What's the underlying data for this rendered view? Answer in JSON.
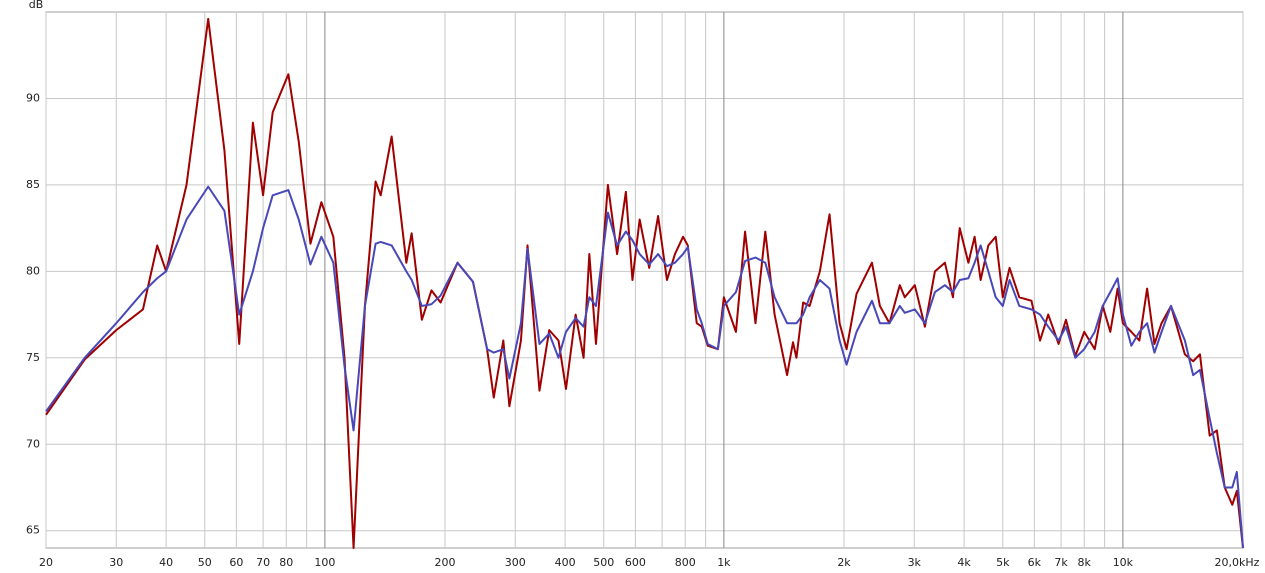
{
  "chart_data": {
    "type": "line",
    "y_label": "dB",
    "xscale": "log",
    "grid": true,
    "xlim": [
      20,
      20000
    ],
    "ylim": [
      64,
      95
    ],
    "yticks": [
      65,
      70,
      75,
      80,
      85,
      90
    ],
    "xticks": [
      20,
      30,
      40,
      50,
      60,
      70,
      80,
      100,
      200,
      300,
      400,
      500,
      600,
      800,
      {
        "value": 1000,
        "label": "1k"
      },
      {
        "value": 2000,
        "label": "2k"
      },
      {
        "value": 3000,
        "label": "3k"
      },
      {
        "value": 4000,
        "label": "4k"
      },
      {
        "value": 5000,
        "label": "5k"
      },
      {
        "value": 6000,
        "label": "6k"
      },
      {
        "value": 7000,
        "label": "7k"
      },
      {
        "value": 8000,
        "label": "8k"
      },
      {
        "value": 10000,
        "label": "10k"
      },
      {
        "value": 20000,
        "label": "20,0kHz"
      }
    ],
    "x_minor_gridlines": [
      90,
      700,
      900,
      9000
    ],
    "x": [
      20,
      25,
      30,
      35,
      38,
      40,
      45,
      51,
      56,
      61,
      66,
      70,
      74,
      81,
      86,
      92,
      98,
      105,
      112,
      118,
      126,
      134,
      138,
      147,
      160,
      165,
      175,
      185,
      195,
      215,
      235,
      255,
      265,
      280,
      290,
      310,
      322,
      345,
      365,
      385,
      402,
      425,
      445,
      460,
      478,
      512,
      540,
      568,
      590,
      615,
      650,
      684,
      720,
      754,
      790,
      812,
      855,
      880,
      911,
      966,
      1000,
      1072,
      1130,
      1200,
      1270,
      1340,
      1440,
      1490,
      1520,
      1580,
      1640,
      1740,
      1840,
      1950,
      2030,
      2150,
      2350,
      2460,
      2600,
      2760,
      2840,
      3010,
      3190,
      3380,
      3580,
      3750,
      3900,
      4100,
      4250,
      4400,
      4600,
      4800,
      5000,
      5200,
      5500,
      5900,
      6200,
      6500,
      6900,
      7200,
      7600,
      8000,
      8500,
      8900,
      9300,
      9700,
      10000,
      10500,
      11000,
      11500,
      12000,
      12500,
      13200,
      14300,
      15000,
      15600,
      16500,
      17200,
      18000,
      18800,
      19300,
      20000
    ],
    "series": [
      {
        "color": "#a00000",
        "values": [
          71.7,
          74.9,
          76.6,
          77.8,
          81.5,
          80.0,
          85.0,
          94.6,
          87.0,
          75.8,
          88.6,
          84.4,
          89.2,
          91.4,
          87.5,
          81.6,
          84.0,
          82.0,
          75.0,
          64.0,
          78.0,
          85.2,
          84.4,
          87.8,
          80.5,
          82.2,
          77.2,
          78.9,
          78.2,
          80.5,
          79.4,
          75.5,
          72.7,
          76.0,
          72.2,
          76.0,
          81.5,
          73.1,
          76.6,
          76.0,
          73.2,
          77.5,
          75.0,
          81.0,
          75.8,
          85.0,
          81.0,
          84.6,
          79.5,
          83.0,
          80.2,
          83.2,
          79.5,
          81.0,
          82.0,
          81.5,
          77.0,
          76.8,
          75.7,
          75.5,
          78.5,
          76.5,
          82.3,
          77.0,
          82.3,
          77.5,
          74.0,
          75.9,
          75.0,
          78.2,
          78.0,
          80.0,
          83.3,
          77.0,
          75.5,
          78.7,
          80.5,
          78.0,
          77.0,
          79.2,
          78.5,
          79.2,
          76.8,
          80.0,
          80.5,
          78.5,
          82.5,
          80.5,
          82.0,
          79.5,
          81.5,
          82.0,
          78.5,
          80.2,
          78.5,
          78.3,
          76.0,
          77.5,
          75.8,
          77.2,
          75.1,
          76.5,
          75.5,
          78.0,
          76.5,
          79.0,
          77.0,
          76.5,
          76.0,
          79.0,
          75.8,
          77.0,
          78.0,
          75.2,
          74.8,
          75.2,
          70.5,
          70.8,
          67.5,
          66.5,
          67.3,
          64.0
        ]
      },
      {
        "color": "#4848b8",
        "values": [
          71.9,
          75.0,
          77.0,
          78.8,
          79.6,
          80.0,
          83.0,
          84.9,
          83.5,
          77.5,
          80.0,
          82.5,
          84.4,
          84.7,
          83.0,
          80.4,
          82.0,
          80.5,
          74.5,
          70.8,
          78.0,
          81.6,
          81.7,
          81.5,
          80.0,
          79.5,
          78.0,
          78.1,
          78.6,
          80.5,
          79.4,
          75.5,
          75.3,
          75.5,
          73.8,
          77.0,
          81.3,
          75.8,
          76.4,
          75.0,
          76.5,
          77.3,
          76.8,
          78.5,
          78.0,
          83.4,
          81.5,
          82.3,
          81.8,
          81.0,
          80.4,
          81.0,
          80.3,
          80.5,
          81.0,
          81.4,
          77.8,
          77.0,
          75.8,
          75.5,
          78.0,
          78.8,
          80.6,
          80.8,
          80.5,
          78.5,
          77.0,
          77.0,
          77.0,
          77.5,
          78.5,
          79.5,
          79.0,
          76.0,
          74.6,
          76.5,
          78.3,
          77.0,
          77.0,
          78.0,
          77.6,
          77.8,
          77.0,
          78.8,
          79.2,
          78.8,
          79.5,
          79.6,
          80.5,
          81.5,
          80.0,
          78.5,
          78.0,
          79.5,
          78.0,
          77.8,
          77.5,
          76.8,
          76.0,
          76.8,
          75.0,
          75.5,
          76.5,
          78.0,
          78.8,
          79.6,
          77.5,
          75.7,
          76.5,
          77.0,
          75.3,
          76.5,
          78.0,
          76.0,
          74.0,
          74.3,
          71.5,
          69.5,
          67.5,
          67.5,
          68.4,
          64.0
        ]
      }
    ]
  }
}
